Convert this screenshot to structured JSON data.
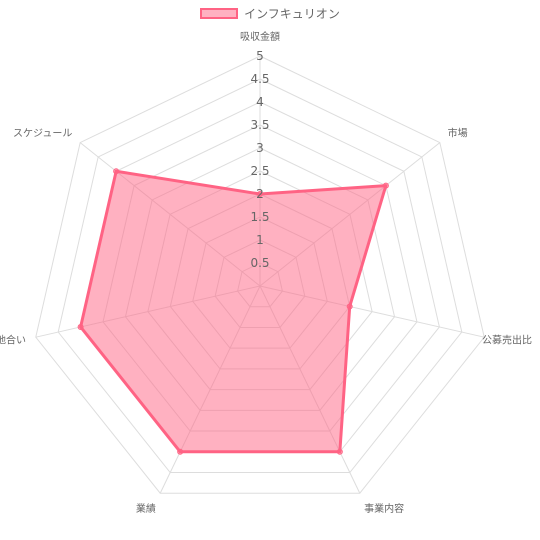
{
  "chart_data": {
    "type": "radar",
    "labels": [
      "吸収金額",
      "市場",
      "公募売出比",
      "事業内容",
      "業績",
      "地合い",
      "スケジュール"
    ],
    "series": [
      {
        "name": "インフキュリオン",
        "values": [
          2,
          3.5,
          2,
          4,
          4,
          4,
          4
        ],
        "color": "#ff6384",
        "fill": "rgba(255,99,132,0.5)"
      }
    ],
    "r_range": [
      0,
      5
    ],
    "ticks": [
      "0.5",
      "1",
      "1.5",
      "2",
      "2.5",
      "3",
      "3.5",
      "4",
      "4.5",
      "5"
    ],
    "tick_values": [
      0.5,
      1,
      1.5,
      2,
      2.5,
      3,
      3.5,
      4,
      4.5,
      5
    ],
    "grid": true,
    "legend_position": "top"
  }
}
